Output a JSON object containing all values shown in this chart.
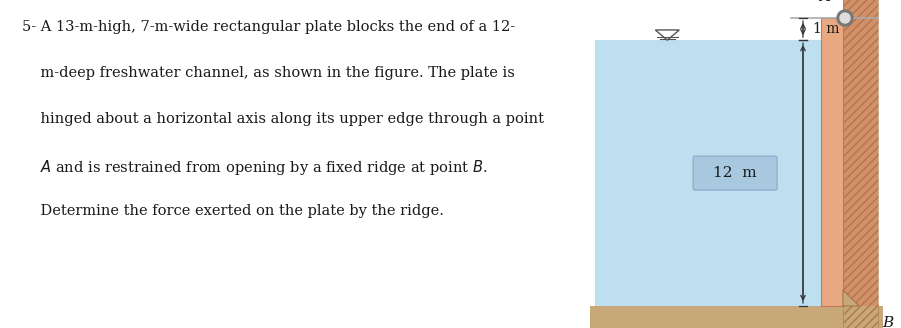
{
  "bg_color": "#ffffff",
  "text_color": "#1a1a1a",
  "water_color": "#bddff0",
  "plate_color": "#e8a882",
  "ground_color": "#c8a878",
  "wall_color": "#d4906a",
  "arrow_color": "#333333",
  "dim_line_color": "#555555",
  "label_12m": "12  m",
  "label_1m": "1 m",
  "label_A": "A",
  "label_B": "B",
  "fig_width": 9.01,
  "fig_height": 3.28
}
